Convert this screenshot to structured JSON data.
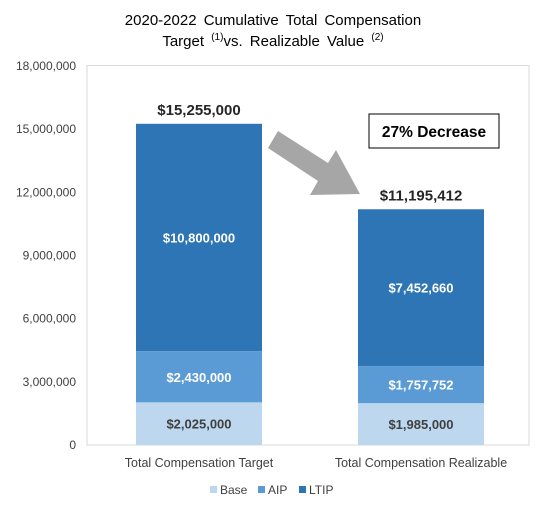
{
  "chart_data": {
    "type": "bar",
    "stacked": true,
    "title_line1": "2020-2022 Cumulative Total Compensation",
    "title_line2_a": "Target ",
    "title_sup_1": "(1)",
    "title_line2_b": "vs. Realizable Value ",
    "title_sup_2": "(2)",
    "categories": [
      "Total Compensation Target",
      "Total Compensation Realizable"
    ],
    "series": [
      {
        "name": "Base",
        "color": "#bdd7ee",
        "text_color": "#404040",
        "values": [
          2025000,
          1985000
        ],
        "labels": [
          "$2,025,000",
          "$1,985,000"
        ]
      },
      {
        "name": "AIP",
        "color": "#5b9bd5",
        "text_color": "#ffffff",
        "values": [
          2430000,
          1757752
        ],
        "labels": [
          "$2,430,000",
          "$1,757,752"
        ]
      },
      {
        "name": "LTIP",
        "color": "#2e75b6",
        "text_color": "#ffffff",
        "values": [
          10800000,
          7452660
        ],
        "labels": [
          "$10,800,000",
          "$7,452,660"
        ]
      }
    ],
    "totals": [
      "$15,255,000",
      "$11,195,412"
    ],
    "ylim": [
      0,
      18000000
    ],
    "yticks": [
      0,
      3000000,
      6000000,
      9000000,
      12000000,
      15000000,
      18000000
    ],
    "ytick_labels": [
      "0",
      "3,000,000",
      "6,000,000",
      "9,000,000",
      "12,000,000",
      "15,000,000",
      "18,000,000"
    ],
    "grid": false,
    "legend_position": "bottom",
    "annotation": "27% Decrease",
    "arrow_color": "#a6a6a6"
  }
}
